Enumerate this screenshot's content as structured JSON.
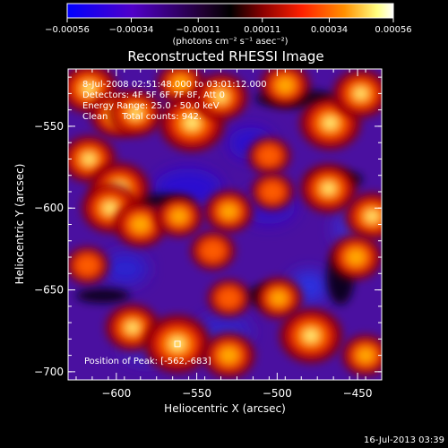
{
  "chart_data": {
    "type": "heatmap",
    "title": "Reconstructed RHESSI Image",
    "xlabel": "Heliocentric X (arcsec)",
    "ylabel": "Heliocentric Y (arcsec)",
    "xlim": [
      -630,
      -435
    ],
    "ylim": [
      -705,
      -515
    ],
    "x_ticks": [
      -600,
      -550,
      -500,
      -450
    ],
    "y_ticks": [
      -550,
      -600,
      -650,
      -700
    ],
    "x_tick_labels": [
      "−600",
      "−550",
      "−500",
      "−450"
    ],
    "y_tick_labels": [
      "−550",
      "−600",
      "−650",
      "−700"
    ],
    "colorbar": {
      "range": [
        -0.00056,
        0.00056
      ],
      "ticks": [
        -0.00056,
        -0.00034,
        -0.00011,
        0.00011,
        0.00034,
        0.00056
      ],
      "tick_labels": [
        "−0.00056",
        "−0.00034",
        "−0.00011",
        "0.00011",
        "0.00034",
        "0.00056"
      ],
      "units_label": "(photons cm⁻² s⁻¹ asec⁻²)",
      "colormap": [
        "#0000ff",
        "#5000c8",
        "#200030",
        "#000000",
        "#8b0000",
        "#ff2000",
        "#ff9000",
        "#ffff80",
        "#ffffff"
      ]
    },
    "annotations": [
      "8-Jul-2008 02:51:48.000 to 03:01:12.000",
      "Detectors: 4F 5F 6F 7F 8F, Att 0",
      "Energy Range: 25.0 - 50.0 keV",
      "Clean     Total counts: 942."
    ],
    "peak_label": "Position of Peak: [-562,-683]",
    "peak": [
      -562,
      -683
    ],
    "bright_sources": [
      {
        "x": -617,
        "y": -527,
        "value": 0.00045
      },
      {
        "x": -600,
        "y": -543,
        "value": 0.0004
      },
      {
        "x": -588,
        "y": -542,
        "value": 0.00042
      },
      {
        "x": -560,
        "y": -524,
        "value": 0.00035
      },
      {
        "x": -553,
        "y": -548,
        "value": 0.00055
      },
      {
        "x": -535,
        "y": -532,
        "value": 0.00042
      },
      {
        "x": -495,
        "y": -525,
        "value": 0.00038
      },
      {
        "x": -467,
        "y": -548,
        "value": 0.0005
      },
      {
        "x": -448,
        "y": -530,
        "value": 0.00044
      },
      {
        "x": -505,
        "y": -568,
        "value": 0.0003
      },
      {
        "x": -617,
        "y": -570,
        "value": 0.00042
      },
      {
        "x": -598,
        "y": -588,
        "value": 0.00048
      },
      {
        "x": -604,
        "y": -600,
        "value": 0.00045
      },
      {
        "x": -585,
        "y": -610,
        "value": 0.0004
      },
      {
        "x": -561,
        "y": -605,
        "value": 0.00035
      },
      {
        "x": -530,
        "y": -602,
        "value": 0.00036
      },
      {
        "x": -540,
        "y": -626,
        "value": 0.00032
      },
      {
        "x": -503,
        "y": -590,
        "value": 0.0003
      },
      {
        "x": -468,
        "y": -588,
        "value": 0.00045
      },
      {
        "x": -441,
        "y": -605,
        "value": 0.00043
      },
      {
        "x": -451,
        "y": -630,
        "value": 0.0004
      },
      {
        "x": -530,
        "y": -655,
        "value": 0.0003
      },
      {
        "x": -499,
        "y": -655,
        "value": 0.00035
      },
      {
        "x": -590,
        "y": -673,
        "value": 0.00042
      },
      {
        "x": -562,
        "y": -683,
        "value": 0.00056
      },
      {
        "x": -530,
        "y": -690,
        "value": 0.0004
      },
      {
        "x": -479,
        "y": -678,
        "value": 0.00052
      },
      {
        "x": -445,
        "y": -690,
        "value": 0.00035
      },
      {
        "x": -618,
        "y": -635,
        "value": 0.0003
      }
    ]
  },
  "footer": {
    "timestamp": "16-Jul-2013 03:39"
  }
}
